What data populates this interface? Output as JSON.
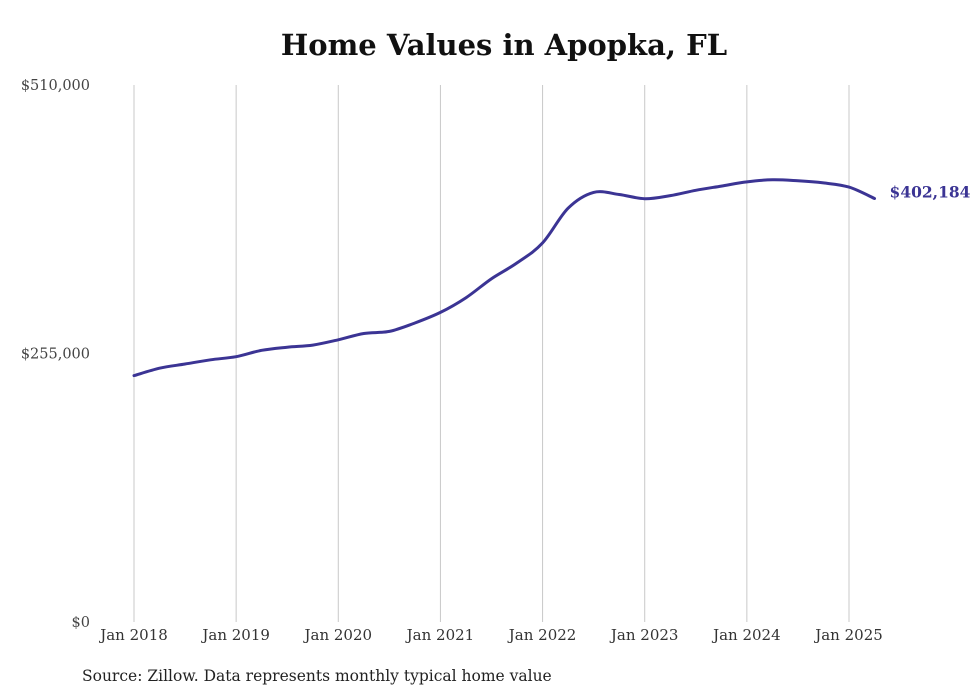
{
  "colors": {
    "line": "#3b3494",
    "grid": "#c8c8c8",
    "text": "#222222"
  },
  "source": "Source: Zillow. Data represents monthly typical home value",
  "chart_data": {
    "type": "line",
    "title": "Home Values in Apopka, FL",
    "xlabel": "",
    "ylabel": "",
    "ylim": [
      0,
      510000
    ],
    "yticks": [
      0,
      255000,
      510000
    ],
    "ytick_labels": [
      "$0",
      "$255,000",
      "$510,000"
    ],
    "xlim": [
      "2018-01",
      "2025-04"
    ],
    "xticks": [
      "2018-01",
      "2019-01",
      "2020-01",
      "2021-01",
      "2022-01",
      "2023-01",
      "2024-01",
      "2025-01"
    ],
    "xtick_labels": [
      "Jan 2018",
      "Jan 2019",
      "Jan 2020",
      "Jan 2021",
      "Jan 2022",
      "Jan 2023",
      "Jan 2024",
      "Jan 2025"
    ],
    "grid": "vertical",
    "end_label": "$402,184",
    "series": [
      {
        "x": [
          "2018-01",
          "2018-04",
          "2018-07",
          "2018-10",
          "2019-01",
          "2019-04",
          "2019-07",
          "2019-10",
          "2020-01",
          "2020-04",
          "2020-07",
          "2020-10",
          "2021-01",
          "2021-04",
          "2021-07",
          "2021-10",
          "2022-01",
          "2022-04",
          "2022-07",
          "2022-10",
          "2023-01",
          "2023-04",
          "2023-07",
          "2023-10",
          "2024-01",
          "2024-04",
          "2024-07",
          "2024-10",
          "2025-01",
          "2025-04"
        ],
        "values": [
          234000,
          241000,
          245000,
          249000,
          252000,
          258000,
          261000,
          263000,
          268000,
          274000,
          276000,
          284000,
          294000,
          308000,
          326000,
          341000,
          360000,
          393000,
          408000,
          406000,
          402000,
          405000,
          410000,
          414000,
          418000,
          420000,
          419000,
          417000,
          413000,
          402184
        ]
      }
    ]
  }
}
